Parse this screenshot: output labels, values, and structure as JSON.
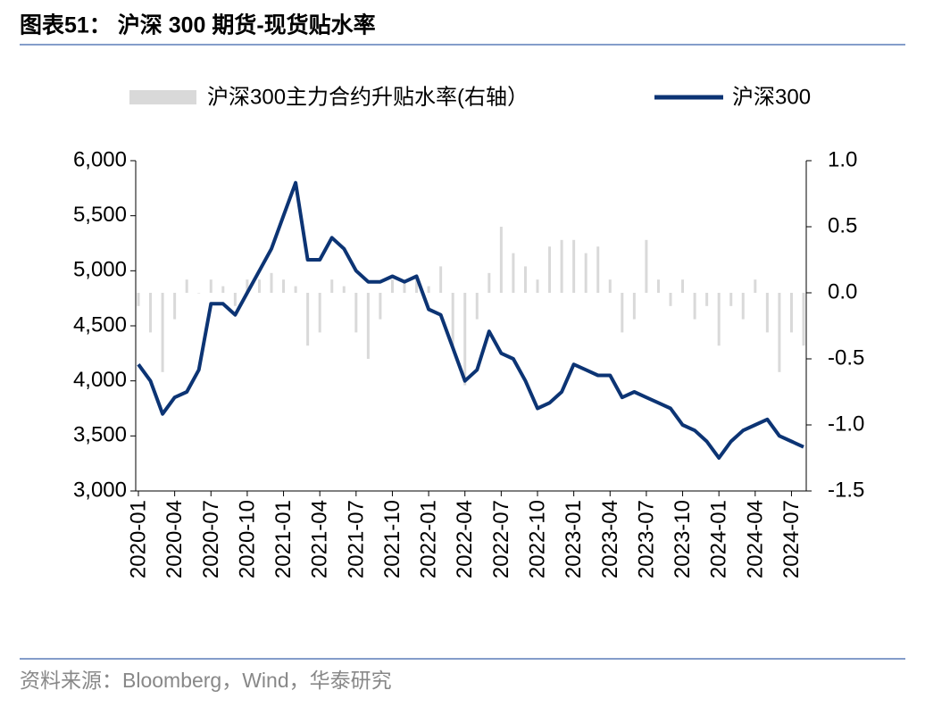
{
  "title": "图表51：  沪深 300 期货-现货贴水率",
  "source": "资料来源：Bloomberg，Wind，华泰研究",
  "chart_data": {
    "type": "combo",
    "categories": [
      "2020-01",
      null,
      null,
      "2020-04",
      null,
      null,
      "2020-07",
      null,
      null,
      "2020-10",
      null,
      null,
      "2021-01",
      null,
      null,
      "2021-04",
      null,
      null,
      "2021-07",
      null,
      null,
      "2021-10",
      null,
      null,
      "2022-01",
      null,
      null,
      "2022-04",
      null,
      null,
      "2022-07",
      null,
      null,
      "2022-10",
      null,
      null,
      "2023-01",
      null,
      null,
      "2023-04",
      null,
      null,
      "2023-07",
      null,
      null,
      "2023-10",
      null,
      null,
      "2024-01",
      null,
      null,
      "2024-04",
      null,
      null,
      "2024-07",
      null
    ],
    "series": [
      {
        "name": "沪深300主力合约升贴水率(右轴）",
        "type": "bar",
        "axis": "y2",
        "color": "#d9d9d9",
        "values": [
          -0.1,
          -0.3,
          -0.6,
          -0.2,
          0.1,
          0.0,
          0.1,
          0.05,
          -0.1,
          0.1,
          0.1,
          0.15,
          0.1,
          0.05,
          -0.4,
          -0.3,
          0.1,
          0.05,
          -0.3,
          -0.5,
          -0.2,
          0.1,
          0.1,
          0.1,
          0.05,
          0.2,
          -0.4,
          -0.7,
          -0.2,
          0.15,
          0.5,
          0.3,
          0.2,
          0.1,
          0.35,
          0.4,
          0.4,
          0.3,
          0.35,
          0.1,
          -0.3,
          -0.2,
          0.4,
          0.1,
          -0.1,
          0.1,
          -0.2,
          -0.1,
          -0.4,
          -0.1,
          -0.2,
          0.1,
          -0.3,
          -0.6,
          -0.3,
          -0.4
        ]
      },
      {
        "name": "沪深300",
        "type": "line",
        "color": "#0c3474",
        "values": [
          4150,
          4000,
          3700,
          3850,
          3900,
          4100,
          4700,
          4700,
          4600,
          4800,
          5000,
          5200,
          5500,
          5800,
          5100,
          5100,
          5300,
          5200,
          5000,
          4900,
          4900,
          4950,
          4900,
          4950,
          4650,
          4600,
          4300,
          4000,
          4100,
          4450,
          4250,
          4200,
          4000,
          3750,
          3800,
          3900,
          4150,
          4100,
          4050,
          4050,
          3850,
          3900,
          3850,
          3800,
          3750,
          3600,
          3550,
          3450,
          3300,
          3450,
          3550,
          3600,
          3650,
          3500,
          3450,
          3400
        ]
      }
    ],
    "ylim": [
      3000,
      6000
    ],
    "yticks": [
      {
        "value": 3000,
        "label": "3,000"
      },
      {
        "value": 3500,
        "label": "3,500"
      },
      {
        "value": 4000,
        "label": "4,000"
      },
      {
        "value": 4500,
        "label": "4,500"
      },
      {
        "value": 5000,
        "label": "5,000"
      },
      {
        "value": 5500,
        "label": "5,500"
      },
      {
        "value": 6000,
        "label": "6,000"
      }
    ],
    "y2lim": [
      -1.5,
      1.0
    ],
    "y2ticks": [
      -1.5,
      {
        "value": -1.0,
        "label": "-1.0"
      },
      -0.5,
      {
        "value": 0.0,
        "label": "0.0"
      },
      0.5,
      {
        "value": 1.0,
        "label": "1.0"
      }
    ]
  }
}
